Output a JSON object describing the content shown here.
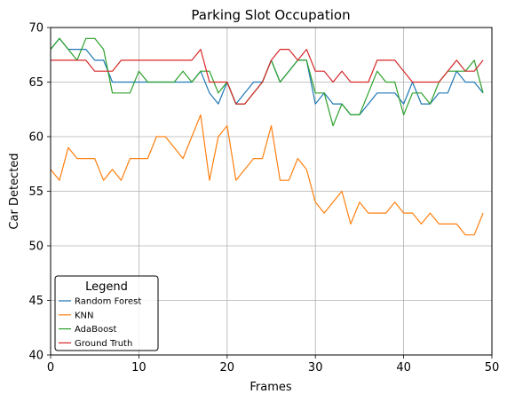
{
  "chart_data": {
    "type": "line",
    "title": "Parking Slot Occupation",
    "xlabel": "Frames",
    "ylabel": "Car Detected",
    "xlim": [
      0,
      50
    ],
    "ylim": [
      40,
      70
    ],
    "xticks": [
      "0",
      "10",
      "20",
      "30",
      "40",
      "50"
    ],
    "yticks": [
      "40",
      "45",
      "50",
      "55",
      "60",
      "65",
      "70"
    ],
    "grid": true,
    "legend": {
      "title": "Legend",
      "placement": "lower-left"
    },
    "x": [
      0,
      1,
      2,
      3,
      4,
      5,
      6,
      7,
      8,
      9,
      10,
      11,
      12,
      13,
      14,
      15,
      16,
      17,
      18,
      19,
      20,
      21,
      22,
      23,
      24,
      25,
      26,
      27,
      28,
      29,
      30,
      31,
      32,
      33,
      34,
      35,
      36,
      37,
      38,
      39,
      40,
      41,
      42,
      43,
      44,
      45,
      46,
      47,
      48,
      49
    ],
    "series": [
      {
        "name": "Random Forest",
        "color": "#1f77b4",
        "values": [
          68,
          69,
          68,
          68,
          68,
          67,
          67,
          65,
          65,
          65,
          65,
          65,
          65,
          65,
          65,
          65,
          65,
          66,
          64,
          63,
          65,
          63,
          64,
          65,
          65,
          67,
          65,
          66,
          67,
          67,
          63,
          64,
          63,
          63,
          62,
          62,
          63,
          64,
          64,
          64,
          63,
          65,
          63,
          63,
          64,
          64,
          66,
          65,
          65,
          64
        ]
      },
      {
        "name": "KNN",
        "color": "#ff7f0e",
        "values": [
          57,
          56,
          59,
          58,
          58,
          58,
          56,
          57,
          56,
          58,
          58,
          58,
          60,
          60,
          59,
          58,
          60,
          62,
          56,
          60,
          61,
          56,
          57,
          58,
          58,
          61,
          56,
          56,
          58,
          57,
          54,
          53,
          54,
          55,
          52,
          54,
          53,
          53,
          53,
          54,
          53,
          53,
          52,
          53,
          52,
          52,
          52,
          51,
          51,
          53
        ]
      },
      {
        "name": "AdaBoost",
        "color": "#2ca02c",
        "values": [
          68,
          69,
          68,
          67,
          69,
          69,
          68,
          64,
          64,
          64,
          66,
          65,
          65,
          65,
          65,
          66,
          65,
          66,
          66,
          64,
          65,
          63,
          63,
          64,
          65,
          67,
          65,
          66,
          67,
          67,
          64,
          64,
          61,
          63,
          62,
          62,
          64,
          66,
          65,
          65,
          62,
          64,
          64,
          63,
          65,
          66,
          66,
          66,
          67,
          64
        ]
      },
      {
        "name": "Ground Truth",
        "color": "#d62728",
        "values": [
          67,
          67,
          67,
          67,
          67,
          66,
          66,
          66,
          67,
          67,
          67,
          67,
          67,
          67,
          67,
          67,
          67,
          68,
          65,
          65,
          65,
          63,
          63,
          64,
          65,
          67,
          68,
          68,
          67,
          68,
          66,
          66,
          65,
          66,
          65,
          65,
          65,
          67,
          67,
          67,
          66,
          65,
          65,
          65,
          65,
          66,
          67,
          66,
          66,
          67
        ]
      }
    ]
  }
}
